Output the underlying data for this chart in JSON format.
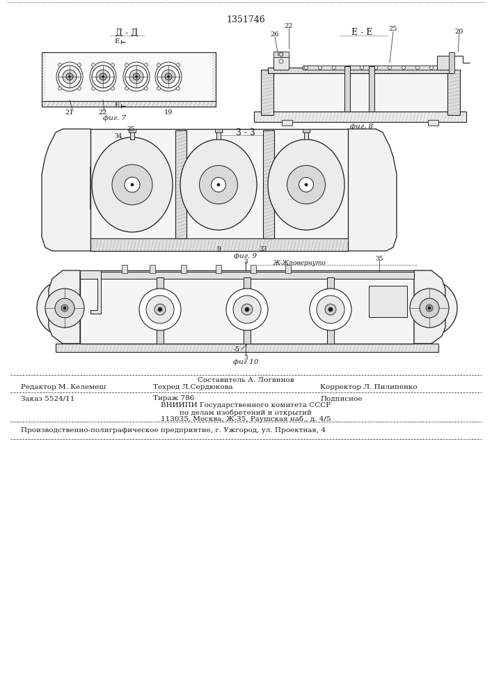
{
  "patent_number": "1351746",
  "fig7_label": "Д - Д",
  "fig8_label": "Е - Е",
  "fig9_label": "З - З",
  "fig7_caption": "фиг. 7",
  "fig8_caption": "фиг. 8",
  "fig9_caption": "фиг. 9",
  "fig10_caption": "фиг 10",
  "jj_label": "Ж-Жповернуто",
  "label_35": "35",
  "label_34": "34",
  "label_9": "9",
  "label_33": "33",
  "label_21": "21",
  "label_22": "22",
  "label_19": "19",
  "label_26": "26",
  "label_25": "25",
  "label_20": "20",
  "label_5": "-5",
  "footer_line1_center": "Составитель А. Логвинов",
  "footer_line2_left": "Редактор М. Келемеш",
  "footer_line2_center": "Техред Л.Сердюкова",
  "footer_line2_right": "Корректор Л. Пилипенко",
  "footer_line3_left": "Заказ 5524/11",
  "footer_line3_center": "Тираж 786",
  "footer_line3_right": "Подписное",
  "footer_line4": "ВНИИПИ Государственного комитета СССР",
  "footer_line5": "по делам изобретений и открытий",
  "footer_line6": "113035, Москва, Ж-35, Раушская наб., д. 4/5",
  "footer_last": "Производственно-полиграфическое предприятие, г. Ужгород, ул. Проектная, 4",
  "bg_color": "#ffffff",
  "lc": "#1a1a1a",
  "hatch_color": "#555555"
}
